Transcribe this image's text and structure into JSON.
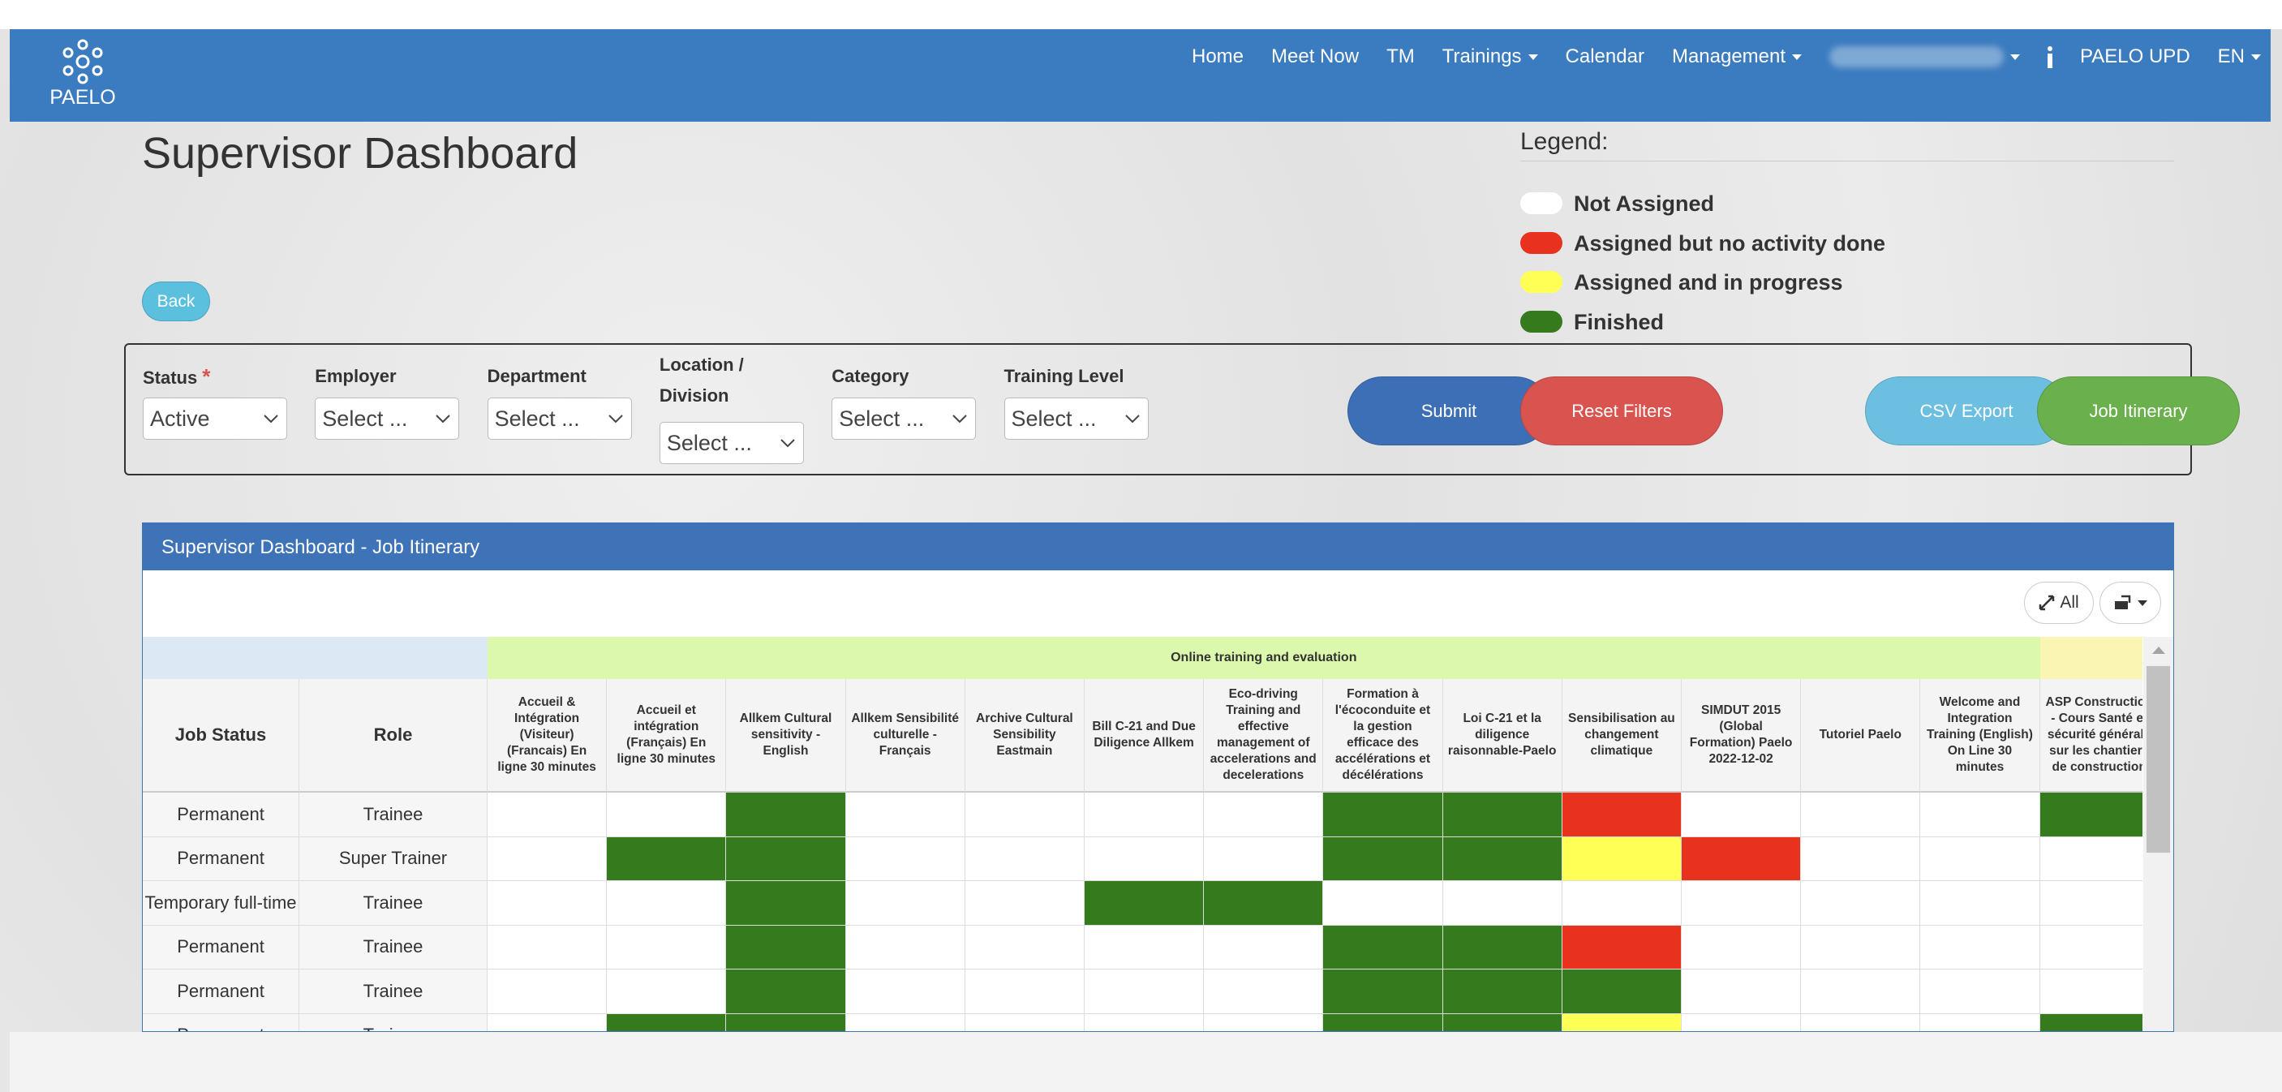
{
  "nav": {
    "brand": "PAELO",
    "items": [
      "Home",
      "Meet Now",
      "TM",
      "Trainings",
      "Calendar",
      "Management"
    ],
    "right_items": [
      "PAELO UPD",
      "EN"
    ]
  },
  "header": {
    "title": "Supervisor Dashboard",
    "back": "Back"
  },
  "legend": {
    "title": "Legend:",
    "items": [
      {
        "label": "Not Assigned",
        "color": "#ffffff"
      },
      {
        "label": "Assigned but no activity done",
        "color": "#e8321e"
      },
      {
        "label": "Assigned and in progress",
        "color": "#ffff55"
      },
      {
        "label": "Finished",
        "color": "#367a1e"
      }
    ]
  },
  "filters": [
    {
      "label": "Status",
      "marker": "*",
      "value": "Active"
    },
    {
      "label": "Employer",
      "value": "Select ..."
    },
    {
      "label": "Department",
      "value": "Select ..."
    },
    {
      "label": "Location / Division",
      "value": "Select ..."
    },
    {
      "label": "Category",
      "value": "Select ..."
    },
    {
      "label": "Training Level",
      "value": "Select ..."
    }
  ],
  "buttons": [
    {
      "label": "Submit",
      "color": "#3d6fb6"
    },
    {
      "label": "Reset Filters",
      "color": "#d9534f"
    },
    {
      "label": "CSV Export",
      "color": "#6cbfe0"
    },
    {
      "label": "Job Itinerary",
      "color": "#6ab04c"
    }
  ],
  "panel": {
    "title": "Supervisor Dashboard - Job Itinerary",
    "toolbar": [
      "All"
    ]
  },
  "table": {
    "group": "Online training and evaluation",
    "fixed_columns": [
      "Job Status",
      "Role"
    ],
    "columns": [
      "Accueil & Intégration (Visiteur) (Francais) En ligne 30 minutes",
      "Accueil et intégration (Français) En ligne 30 minutes",
      "Allkem Cultural sensitivity - English",
      "Allkem Sensibilité culturelle - Français",
      "Archive Cultural Sensibility Eastmain",
      "Bill C-21 and Due Diligence Allkem",
      "Eco-driving Training and effective management of accelerations and decelerations",
      "Formation à l'écoconduite et la gestion efficace des accélérations et décélérations",
      "Loi C-21 et la diligence raisonnable-Paelo",
      "Sensibilisation au changement climatique",
      "SIMDUT 2015 (Global Formation) Paelo 2022-12-02",
      "Tutoriel Paelo",
      "Welcome and Integration Training (English) On Line 30 minutes",
      "ASP Construction - Cours Santé et sécurité générale sur les chantiers de construction"
    ],
    "rows": [
      {
        "status": "Permanent",
        "role": "Trainee",
        "cells": [
          "#ffffff",
          "#ffffff",
          "#367a1e",
          "#ffffff",
          "#ffffff",
          "#ffffff",
          "#ffffff",
          "#367a1e",
          "#367a1e",
          "#e8321e",
          "#ffffff",
          "#ffffff",
          "#ffffff",
          "#367a1e"
        ]
      },
      {
        "status": "Permanent",
        "role": "Super Trainer",
        "cells": [
          "#ffffff",
          "#367a1e",
          "#367a1e",
          "#ffffff",
          "#ffffff",
          "#ffffff",
          "#ffffff",
          "#367a1e",
          "#367a1e",
          "#ffff55",
          "#e8321e",
          "#ffffff",
          "#ffffff",
          "#ffffff"
        ]
      },
      {
        "status": "Temporary full-time",
        "role": "Trainee",
        "cells": [
          "#ffffff",
          "#ffffff",
          "#367a1e",
          "#ffffff",
          "#ffffff",
          "#367a1e",
          "#367a1e",
          "#ffffff",
          "#ffffff",
          "#ffffff",
          "#ffffff",
          "#ffffff",
          "#ffffff",
          "#ffffff"
        ]
      },
      {
        "status": "Permanent",
        "role": "Trainee",
        "cells": [
          "#ffffff",
          "#ffffff",
          "#367a1e",
          "#ffffff",
          "#ffffff",
          "#ffffff",
          "#ffffff",
          "#367a1e",
          "#367a1e",
          "#e8321e",
          "#ffffff",
          "#ffffff",
          "#ffffff",
          "#ffffff"
        ]
      },
      {
        "status": "Permanent",
        "role": "Trainee",
        "cells": [
          "#ffffff",
          "#ffffff",
          "#367a1e",
          "#ffffff",
          "#ffffff",
          "#ffffff",
          "#ffffff",
          "#367a1e",
          "#367a1e",
          "#367a1e",
          "#ffffff",
          "#ffffff",
          "#ffffff",
          "#ffffff"
        ]
      },
      {
        "status": "Permanent",
        "role": "Trainee",
        "cells": [
          "#ffffff",
          "#367a1e",
          "#367a1e",
          "#ffffff",
          "#ffffff",
          "#ffffff",
          "#ffffff",
          "#367a1e",
          "#367a1e",
          "#ffff55",
          "#ffffff",
          "#ffffff",
          "#ffffff",
          "#367a1e"
        ]
      }
    ]
  }
}
